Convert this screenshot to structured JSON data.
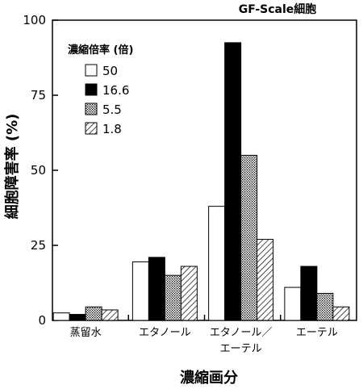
{
  "chart_data": {
    "type": "bar",
    "title": "GF-Scale細胞",
    "ylabel": "細胞障害率 (%)",
    "xlabel": "濃縮画分",
    "ylim": [
      0,
      100
    ],
    "yticks": [
      0,
      25,
      50,
      75,
      100
    ],
    "grid": false,
    "legend_position": "top-left",
    "legend_title": "濃縮倍率 (倍)",
    "categories": [
      {
        "line1": "蒸留水",
        "line2": ""
      },
      {
        "line1": "エタノール",
        "line2": ""
      },
      {
        "line1": "エタノール／",
        "line2": "エーテル"
      },
      {
        "line1": "エーテル",
        "line2": ""
      }
    ],
    "series": [
      {
        "name": "50",
        "fill": "white",
        "values": [
          2.5,
          19.5,
          38,
          11
        ]
      },
      {
        "name": "16.6",
        "fill": "black",
        "values": [
          2,
          21,
          92.5,
          18
        ]
      },
      {
        "name": "5.5",
        "fill": "dotted",
        "values": [
          4.5,
          15,
          55,
          9
        ]
      },
      {
        "name": "1.8",
        "fill": "hatched",
        "values": [
          3.5,
          18,
          27,
          4.5
        ]
      }
    ]
  }
}
